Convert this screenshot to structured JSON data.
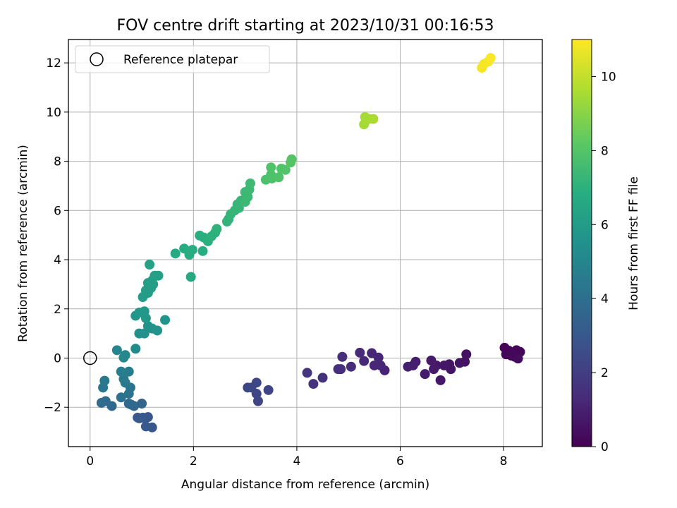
{
  "chart_data": {
    "type": "scatter",
    "title": "FOV centre drift starting at 2023/10/31 00:16:53",
    "xlabel": "Angular distance from reference (arcmin)",
    "ylabel": "Rotation from reference (arcmin)",
    "xlim": [
      -0.42,
      8.75
    ],
    "ylim": [
      -3.6,
      12.95
    ],
    "xticks": [
      0,
      2,
      4,
      6,
      8
    ],
    "yticks": [
      -2,
      0,
      2,
      4,
      6,
      8,
      10,
      12
    ],
    "grid": true,
    "legend": {
      "position": "top-left",
      "entries": [
        "Reference platepar"
      ]
    },
    "reference_point": {
      "x": 0,
      "y": 0
    },
    "colorbar": {
      "label": "Hours from first FF file",
      "min": 0,
      "max": 11,
      "ticks": [
        0,
        2,
        4,
        6,
        8,
        10
      ],
      "colormap": "viridis"
    },
    "points": [
      {
        "x": 8.02,
        "y": 0.42,
        "c": 0.1
      },
      {
        "x": 8.1,
        "y": 0.3,
        "c": 0.1
      },
      {
        "x": 8.25,
        "y": 0.32,
        "c": 0.15
      },
      {
        "x": 8.32,
        "y": 0.25,
        "c": 0.2
      },
      {
        "x": 8.05,
        "y": 0.15,
        "c": 0.15
      },
      {
        "x": 8.15,
        "y": 0.1,
        "c": 0.2
      },
      {
        "x": 8.22,
        "y": 0.05,
        "c": 0.25
      },
      {
        "x": 8.28,
        "y": -0.02,
        "c": 0.3
      },
      {
        "x": 8.18,
        "y": 0.22,
        "c": 0.2
      },
      {
        "x": 7.28,
        "y": 0.15,
        "c": 0.5
      },
      {
        "x": 7.25,
        "y": -0.15,
        "c": 0.5
      },
      {
        "x": 7.15,
        "y": -0.2,
        "c": 0.55
      },
      {
        "x": 6.98,
        "y": -0.45,
        "c": 0.6
      },
      {
        "x": 6.95,
        "y": -0.25,
        "c": 0.6
      },
      {
        "x": 6.85,
        "y": -0.3,
        "c": 0.65
      },
      {
        "x": 6.78,
        "y": -0.9,
        "c": 0.7
      },
      {
        "x": 6.7,
        "y": -0.3,
        "c": 0.7
      },
      {
        "x": 6.65,
        "y": -0.45,
        "c": 0.75
      },
      {
        "x": 6.6,
        "y": -0.1,
        "c": 0.75
      },
      {
        "x": 6.48,
        "y": -0.65,
        "c": 0.8
      },
      {
        "x": 6.3,
        "y": -0.15,
        "c": 0.85
      },
      {
        "x": 6.25,
        "y": -0.3,
        "c": 0.9
      },
      {
        "x": 6.15,
        "y": -0.35,
        "c": 0.95
      },
      {
        "x": 5.7,
        "y": -0.5,
        "c": 1.1
      },
      {
        "x": 5.62,
        "y": -0.3,
        "c": 1.15
      },
      {
        "x": 5.58,
        "y": 0.02,
        "c": 1.15
      },
      {
        "x": 5.5,
        "y": -0.3,
        "c": 1.2
      },
      {
        "x": 5.45,
        "y": 0.2,
        "c": 1.2
      },
      {
        "x": 5.3,
        "y": -0.12,
        "c": 1.25
      },
      {
        "x": 5.22,
        "y": 0.22,
        "c": 1.3
      },
      {
        "x": 5.05,
        "y": -0.35,
        "c": 1.35
      },
      {
        "x": 4.88,
        "y": 0.05,
        "c": 1.4
      },
      {
        "x": 4.85,
        "y": -0.45,
        "c": 1.45
      },
      {
        "x": 4.8,
        "y": -0.45,
        "c": 1.45
      },
      {
        "x": 4.5,
        "y": -0.8,
        "c": 1.55
      },
      {
        "x": 4.32,
        "y": -1.05,
        "c": 1.6
      },
      {
        "x": 4.2,
        "y": -0.6,
        "c": 1.65
      },
      {
        "x": 3.45,
        "y": -1.3,
        "c": 2.2
      },
      {
        "x": 3.25,
        "y": -1.75,
        "c": 2.25
      },
      {
        "x": 3.22,
        "y": -1.45,
        "c": 2.25
      },
      {
        "x": 3.22,
        "y": -1.0,
        "c": 2.3
      },
      {
        "x": 3.12,
        "y": -1.2,
        "c": 2.3
      },
      {
        "x": 3.05,
        "y": -1.2,
        "c": 2.35
      },
      {
        "x": 1.2,
        "y": -2.82,
        "c": 3.0
      },
      {
        "x": 1.12,
        "y": -2.4,
        "c": 3.0
      },
      {
        "x": 1.08,
        "y": -2.78,
        "c": 3.05
      },
      {
        "x": 1.02,
        "y": -2.42,
        "c": 3.1
      },
      {
        "x": 0.95,
        "y": -2.45,
        "c": 3.1
      },
      {
        "x": 0.92,
        "y": -2.42,
        "c": 3.15
      },
      {
        "x": 1.0,
        "y": -1.85,
        "c": 3.6
      },
      {
        "x": 0.85,
        "y": -1.95,
        "c": 3.65
      },
      {
        "x": 0.8,
        "y": -1.9,
        "c": 3.7
      },
      {
        "x": 0.75,
        "y": -1.85,
        "c": 3.7
      },
      {
        "x": 0.42,
        "y": -1.95,
        "c": 3.75
      },
      {
        "x": 0.3,
        "y": -1.75,
        "c": 3.8
      },
      {
        "x": 0.22,
        "y": -1.82,
        "c": 3.85
      },
      {
        "x": 0.6,
        "y": -1.6,
        "c": 4.1
      },
      {
        "x": 0.75,
        "y": -1.45,
        "c": 4.15
      },
      {
        "x": 0.78,
        "y": -1.2,
        "c": 4.2
      },
      {
        "x": 0.25,
        "y": -1.2,
        "c": 4.3
      },
      {
        "x": 0.28,
        "y": -0.92,
        "c": 4.4
      },
      {
        "x": 0.68,
        "y": -1.0,
        "c": 4.45
      },
      {
        "x": 0.65,
        "y": -0.85,
        "c": 4.5
      },
      {
        "x": 0.75,
        "y": -0.55,
        "c": 4.6
      },
      {
        "x": 0.6,
        "y": -0.55,
        "c": 4.7
      },
      {
        "x": 0.52,
        "y": 0.32,
        "c": 5.0
      },
      {
        "x": 0.68,
        "y": 0.12,
        "c": 5.05
      },
      {
        "x": 0.65,
        "y": 0.02,
        "c": 5.1
      },
      {
        "x": 0.88,
        "y": 0.38,
        "c": 5.2
      },
      {
        "x": 0.95,
        "y": 1.0,
        "c": 5.5
      },
      {
        "x": 1.05,
        "y": 1.0,
        "c": 5.55
      },
      {
        "x": 1.12,
        "y": 1.3,
        "c": 5.6
      },
      {
        "x": 1.2,
        "y": 1.2,
        "c": 5.6
      },
      {
        "x": 1.3,
        "y": 1.12,
        "c": 5.65
      },
      {
        "x": 1.45,
        "y": 1.55,
        "c": 5.7
      },
      {
        "x": 0.88,
        "y": 1.72,
        "c": 5.75
      },
      {
        "x": 0.95,
        "y": 1.85,
        "c": 5.8
      },
      {
        "x": 1.05,
        "y": 1.9,
        "c": 5.8
      },
      {
        "x": 1.08,
        "y": 1.62,
        "c": 5.85
      },
      {
        "x": 1.02,
        "y": 2.48,
        "c": 6.0
      },
      {
        "x": 1.12,
        "y": 2.65,
        "c": 6.05
      },
      {
        "x": 1.08,
        "y": 2.75,
        "c": 6.05
      },
      {
        "x": 1.18,
        "y": 2.85,
        "c": 6.1
      },
      {
        "x": 1.22,
        "y": 3.0,
        "c": 6.1
      },
      {
        "x": 1.12,
        "y": 3.05,
        "c": 6.15
      },
      {
        "x": 1.2,
        "y": 3.15,
        "c": 6.15
      },
      {
        "x": 1.25,
        "y": 3.35,
        "c": 6.2
      },
      {
        "x": 1.32,
        "y": 3.35,
        "c": 6.2
      },
      {
        "x": 1.15,
        "y": 3.8,
        "c": 6.25
      },
      {
        "x": 1.95,
        "y": 3.3,
        "c": 6.6
      },
      {
        "x": 1.65,
        "y": 4.25,
        "c": 6.7
      },
      {
        "x": 1.82,
        "y": 4.45,
        "c": 6.75
      },
      {
        "x": 1.92,
        "y": 4.2,
        "c": 6.8
      },
      {
        "x": 1.98,
        "y": 4.4,
        "c": 6.8
      },
      {
        "x": 2.18,
        "y": 4.35,
        "c": 6.85
      },
      {
        "x": 2.2,
        "y": 4.9,
        "c": 6.9
      },
      {
        "x": 2.12,
        "y": 4.98,
        "c": 6.9
      },
      {
        "x": 2.28,
        "y": 4.75,
        "c": 6.95
      },
      {
        "x": 2.35,
        "y": 4.95,
        "c": 7.0
      },
      {
        "x": 2.42,
        "y": 5.1,
        "c": 7.0
      },
      {
        "x": 2.45,
        "y": 5.25,
        "c": 7.05
      },
      {
        "x": 2.65,
        "y": 5.55,
        "c": 7.15
      },
      {
        "x": 2.68,
        "y": 5.65,
        "c": 7.15
      },
      {
        "x": 2.72,
        "y": 5.85,
        "c": 7.2
      },
      {
        "x": 2.8,
        "y": 6.0,
        "c": 7.25
      },
      {
        "x": 2.88,
        "y": 6.1,
        "c": 7.25
      },
      {
        "x": 2.85,
        "y": 6.25,
        "c": 7.3
      },
      {
        "x": 2.92,
        "y": 6.4,
        "c": 7.3
      },
      {
        "x": 3.0,
        "y": 6.35,
        "c": 7.35
      },
      {
        "x": 3.05,
        "y": 6.55,
        "c": 7.35
      },
      {
        "x": 3.0,
        "y": 6.75,
        "c": 7.4
      },
      {
        "x": 3.08,
        "y": 6.85,
        "c": 7.4
      },
      {
        "x": 3.1,
        "y": 7.1,
        "c": 7.45
      },
      {
        "x": 3.4,
        "y": 7.25,
        "c": 7.8
      },
      {
        "x": 3.52,
        "y": 7.3,
        "c": 7.85
      },
      {
        "x": 3.5,
        "y": 7.45,
        "c": 7.85
      },
      {
        "x": 3.5,
        "y": 7.75,
        "c": 7.9
      },
      {
        "x": 3.65,
        "y": 7.35,
        "c": 7.9
      },
      {
        "x": 3.7,
        "y": 7.7,
        "c": 7.95
      },
      {
        "x": 3.78,
        "y": 7.65,
        "c": 7.95
      },
      {
        "x": 3.88,
        "y": 7.95,
        "c": 8.0
      },
      {
        "x": 3.9,
        "y": 8.08,
        "c": 8.0
      },
      {
        "x": 5.3,
        "y": 9.5,
        "c": 9.45
      },
      {
        "x": 5.32,
        "y": 9.8,
        "c": 9.5
      },
      {
        "x": 5.4,
        "y": 9.72,
        "c": 9.5
      },
      {
        "x": 5.48,
        "y": 9.72,
        "c": 9.55
      },
      {
        "x": 7.58,
        "y": 11.8,
        "c": 10.85
      },
      {
        "x": 7.62,
        "y": 11.95,
        "c": 10.9
      },
      {
        "x": 7.7,
        "y": 12.05,
        "c": 10.9
      },
      {
        "x": 7.75,
        "y": 12.2,
        "c": 10.95
      }
    ]
  }
}
